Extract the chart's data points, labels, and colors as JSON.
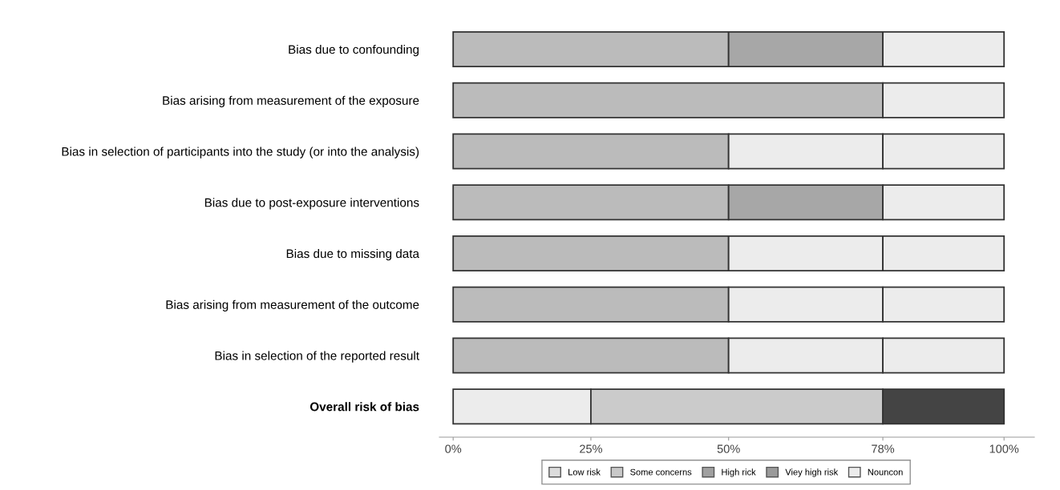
{
  "chart_data": {
    "type": "bar",
    "orientation": "horizontal",
    "stacked": true,
    "categories": [
      "Bias due to confounding",
      "Bias arising from measurement of the exposure",
      "Bias in selection of participants into the study (or into the analysis)",
      "Bias due to post-exposure interventions",
      "Bias due to missing data",
      "Bias arising from measurement of the outcome",
      "Bias in selection of the reported result",
      "Overall risk of bias"
    ],
    "series": [
      {
        "name": "Low risk",
        "color": "#dcdcdc",
        "values": [
          null,
          null,
          null,
          null,
          null,
          null,
          null,
          null
        ]
      },
      {
        "name": "Some concerns",
        "color": "#c8c8c8",
        "values": [
          null,
          null,
          null,
          null,
          null,
          null,
          null,
          null
        ]
      },
      {
        "name": "High rick",
        "color": "#a0a0a0",
        "values": [
          null,
          null,
          null,
          null,
          null,
          null,
          null,
          null
        ]
      },
      {
        "name": "Viey high risk",
        "color": "#9a9a9a",
        "values": [
          null,
          null,
          null,
          null,
          null,
          null,
          null,
          null
        ]
      },
      {
        "name": "Nouncon",
        "color": "#ececec",
        "values": [
          null,
          null,
          null,
          null,
          null,
          null,
          null,
          null
        ]
      },
      {
        "colors": [
          "#bbbbbb",
          "#bbbbbb",
          "#bbbbbb",
          "#bbbbbb",
          "#bbbbbb",
          "#bbbbbb",
          "#bbbbbb",
          "#ececec"
        ],
        "values": [
          50,
          78,
          50,
          50,
          50,
          50,
          50,
          25
        ]
      },
      {
        "colors": [
          "#a7a7a7",
          "#a7a7a7",
          "#ececec",
          "#a7a7a7",
          "#ececec",
          "#ececec",
          "#ececec",
          "#cbcbcb"
        ],
        "values": [
          28,
          null,
          28,
          28,
          28,
          28,
          28,
          53
        ]
      },
      {
        "colors": [
          "#ececec",
          "#ececec",
          "#ececec",
          "#ececec",
          "#ececec",
          "#ececec",
          "#ececec",
          "#444444"
        ],
        "values": [
          22,
          22,
          22,
          22,
          22,
          22,
          22,
          22
        ]
      }
    ],
    "xlim": [
      -2.5,
      105.5
    ],
    "xticks": [
      {
        "value": 0,
        "label": "0%"
      },
      {
        "value": 25,
        "label": "25%"
      },
      {
        "value": 50,
        "label": "50%"
      },
      {
        "value": 78,
        "label": "78%"
      },
      {
        "value": 100,
        "label": "100%"
      }
    ],
    "grid": false,
    "legend": "bottom"
  }
}
